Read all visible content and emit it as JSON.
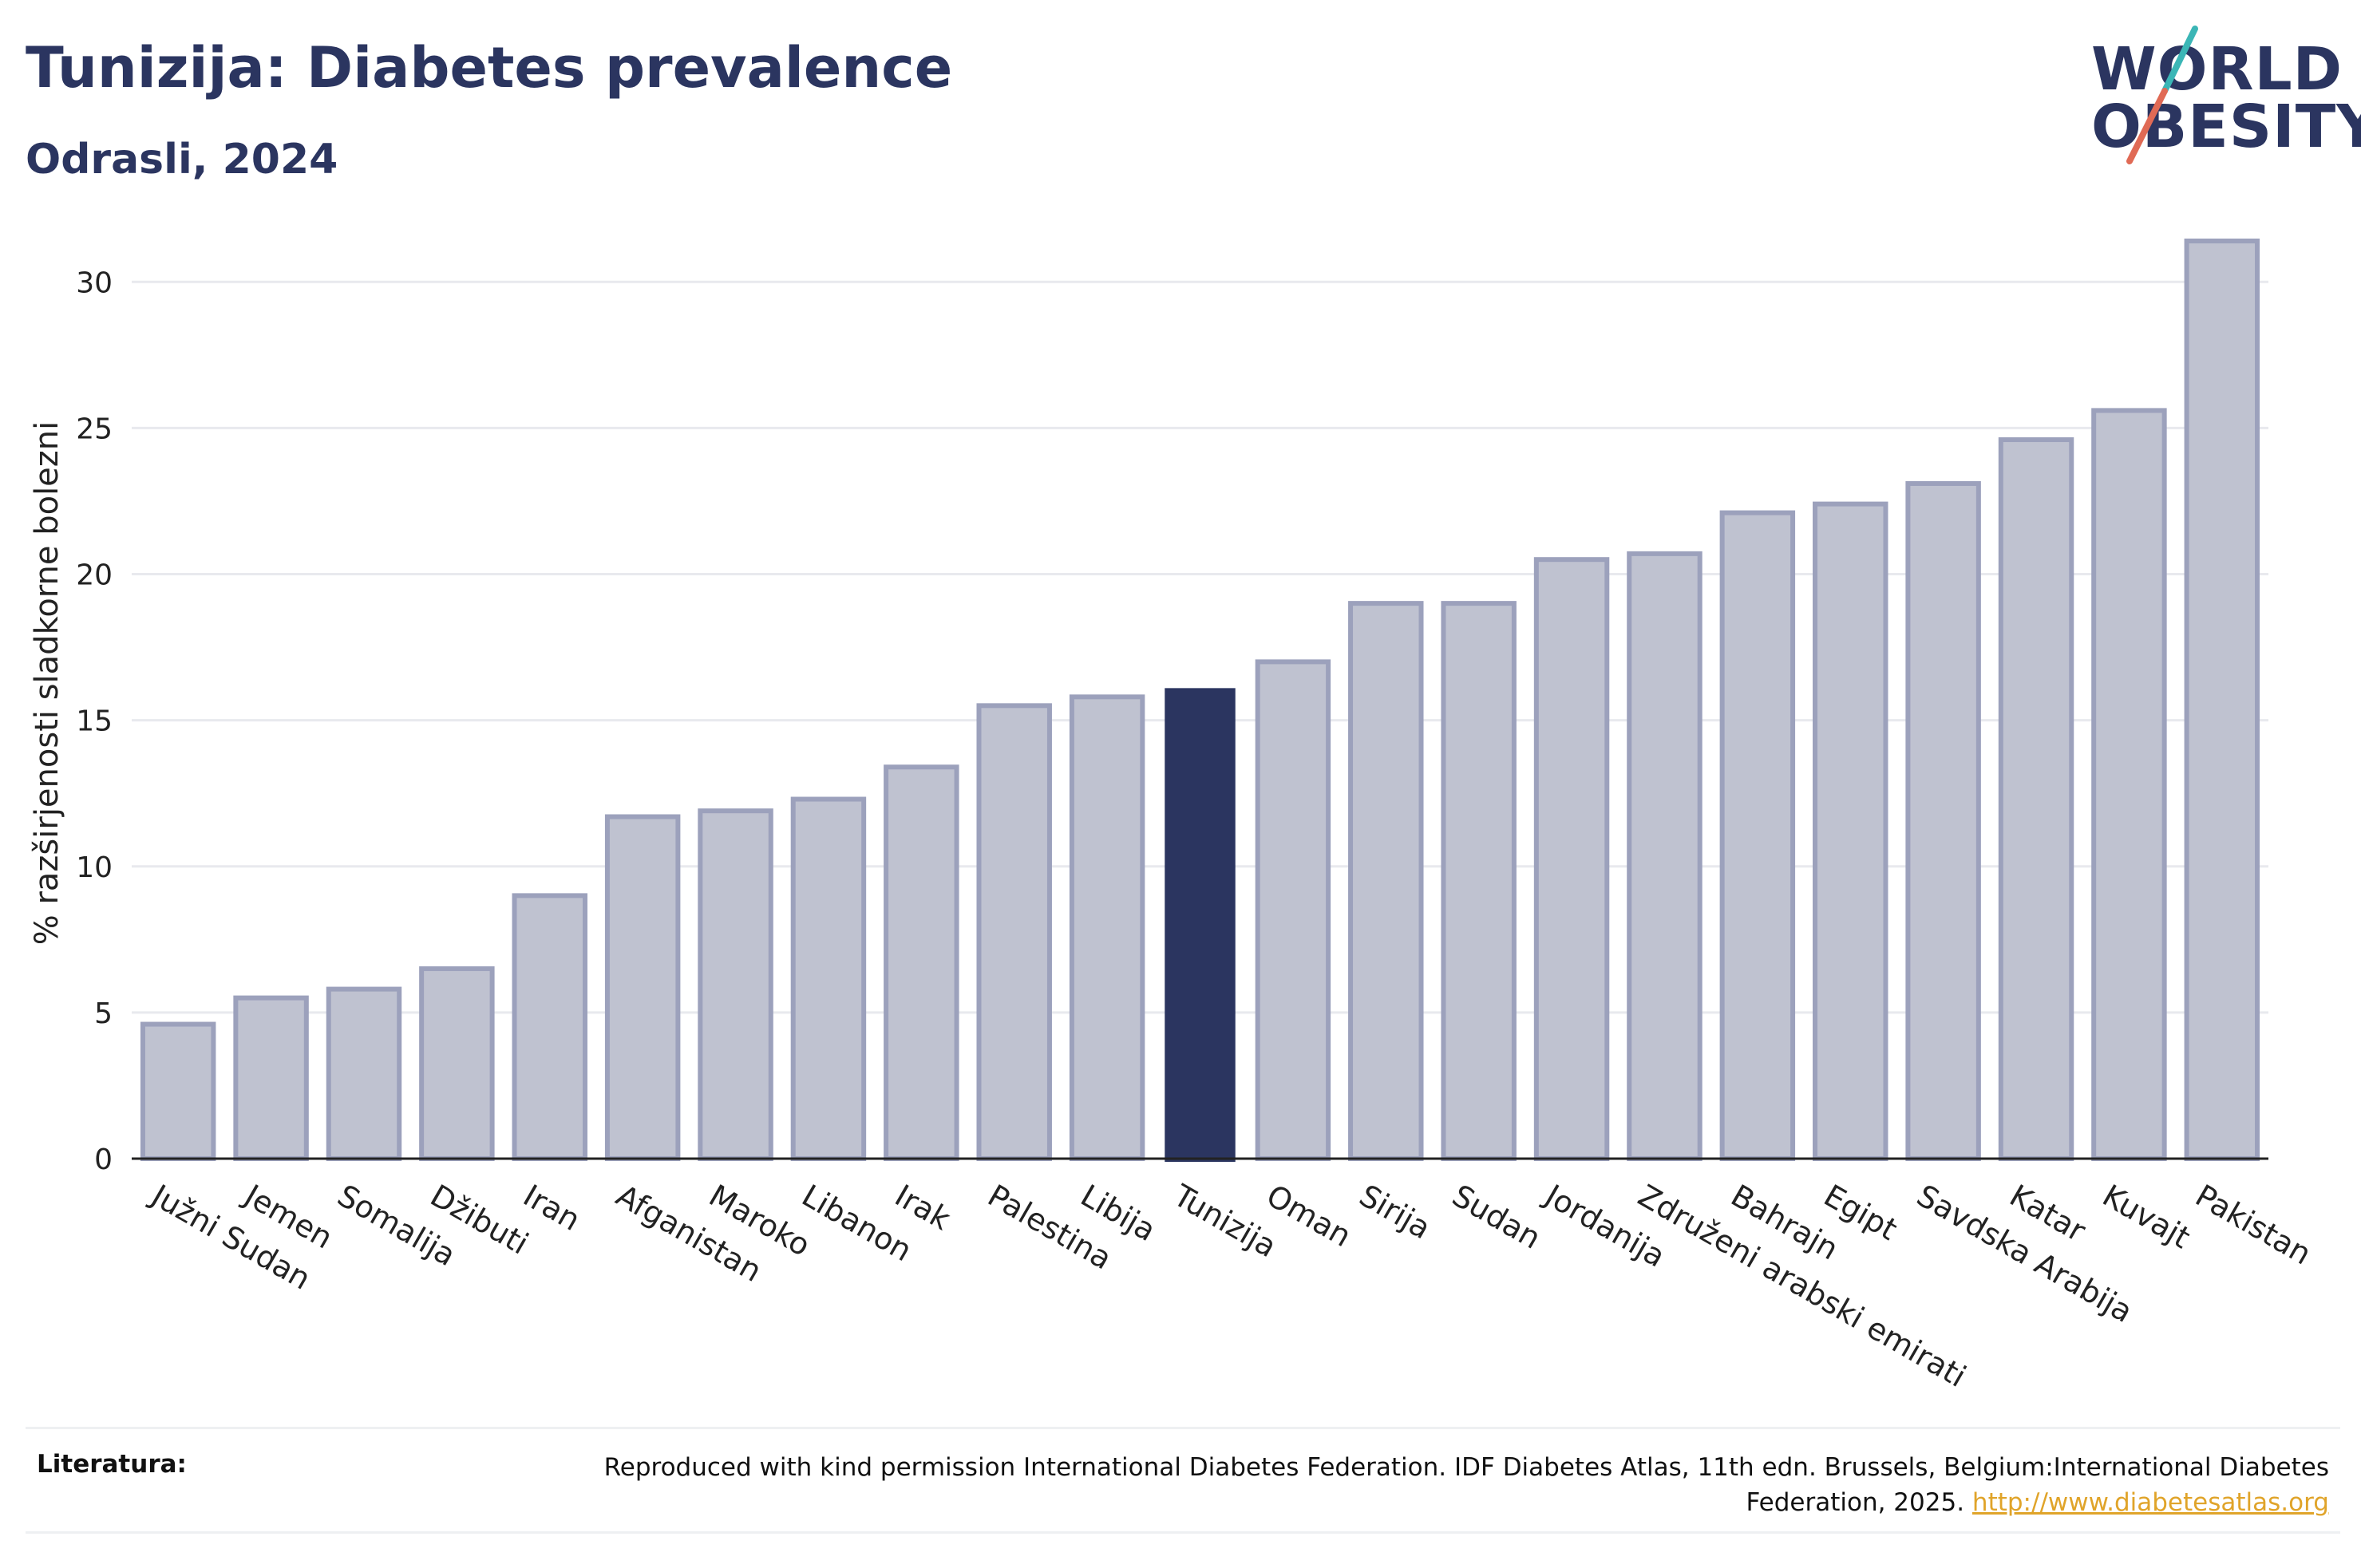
{
  "header": {
    "title": "Tunizija: Diabetes prevalence",
    "subtitle": "Odrasli, 2024"
  },
  "logo": {
    "line1": "WORLD",
    "line2": "OBESITY",
    "colors": {
      "text": "#2b3560",
      "slash_top": "#3bb6b6",
      "slash_bottom": "#e06a55"
    }
  },
  "footer": {
    "label": "Literatura:",
    "text": "Reproduced with kind permission International Diabetes Federation. IDF Diabetes Atlas, 11th edn. Brussels, Belgium:International Diabetes Federation, 2025.",
    "link_text": "http://www.diabetesatlas.org"
  },
  "colors": {
    "highlight_bar": "#2b3560",
    "bar_fill": "#bfc2d0",
    "bar_stroke": "#9ca1bc",
    "grid": "#e8e9ee",
    "axis": "#222222"
  },
  "chart_data": {
    "type": "bar",
    "title": "Tunizija: Diabetes prevalence",
    "subtitle": "Odrasli, 2024",
    "xlabel": "",
    "ylabel": "% razširjenosti sladkorne bolezni",
    "ylim": [
      0,
      32
    ],
    "yticks": [
      0,
      5,
      10,
      15,
      20,
      25,
      30
    ],
    "grid": true,
    "highlight": "Tunizija",
    "categories": [
      "Južni Sudan",
      "Jemen",
      "Somalija",
      "Džibuti",
      "Iran",
      "Afganistan",
      "Maroko",
      "Libanon",
      "Irak",
      "Palestina",
      "Libija",
      "Tunizija",
      "Oman",
      "Sirija",
      "Sudan",
      "Jordanija",
      "Združeni arabski emirati",
      "Bahrajn",
      "Egipt",
      "Savdska Arabija",
      "Katar",
      "Kuvajt",
      "Pakistan"
    ],
    "values": [
      4.6,
      5.5,
      5.8,
      6.5,
      9.0,
      11.7,
      11.9,
      12.3,
      13.4,
      15.5,
      15.8,
      16.1,
      17.0,
      19.0,
      19.0,
      20.5,
      20.7,
      22.1,
      22.4,
      23.1,
      24.6,
      25.6,
      31.4
    ]
  }
}
